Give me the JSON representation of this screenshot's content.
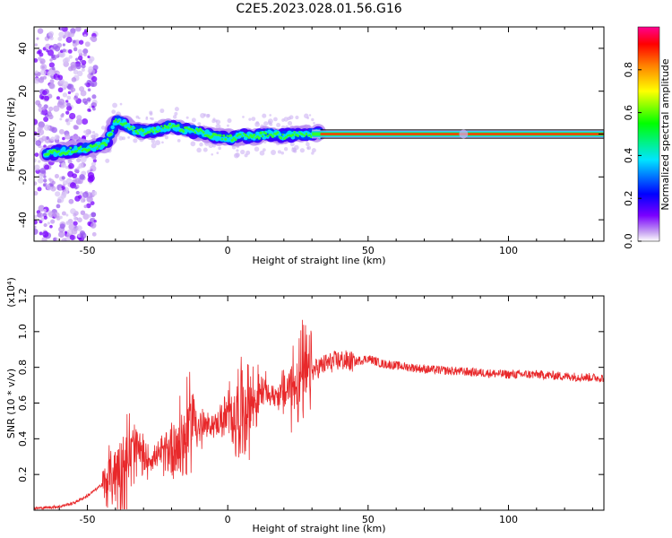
{
  "title": "C2E5.2023.028.01.56.G16",
  "colors": {
    "line": "#e8282a",
    "axis": "#000000"
  },
  "chart_data": [
    {
      "type": "heatmap",
      "xlabel": "Height of straight line (km)",
      "ylabel": "Frequency (Hz)",
      "xlim": [
        -69,
        134
      ],
      "ylim": [
        -50,
        50
      ],
      "x_ticks": [
        -50,
        0,
        50,
        100
      ],
      "y_ticks": [
        -40,
        -20,
        0,
        20,
        40
      ],
      "colorbar": {
        "label": "Normalized spectral amplitude",
        "range": [
          0,
          1
        ],
        "ticks": [
          "0.0",
          "0.2",
          "0.4",
          "0.6",
          "0.8"
        ],
        "colormap": "rainbow"
      },
      "ridge": {
        "x": [
          -64,
          -58,
          -52,
          -47,
          -43,
          -40,
          -37,
          -34,
          -30,
          -25,
          -20,
          -15,
          -10,
          -5,
          0,
          5,
          10,
          15,
          20,
          25,
          30,
          35,
          134
        ],
        "frequency": [
          -9,
          -8,
          -7,
          -6,
          -4,
          6,
          5,
          2,
          1,
          2,
          4,
          2,
          1,
          -1,
          -2,
          -1,
          -1,
          0,
          -1,
          0,
          0,
          0,
          0
        ]
      }
    },
    {
      "type": "line",
      "xlabel": "Height of straight line (km)",
      "ylabel": "SNR (10 * v/v)",
      "y_scale_label": "(x10⁴)",
      "xlim": [
        -69,
        134
      ],
      "ylim": [
        0,
        1.2
      ],
      "x_ticks": [
        -50,
        0,
        50,
        100
      ],
      "y_ticks": [
        "0.2",
        "0.4",
        "0.6",
        "0.8",
        "1.0",
        "1.2"
      ],
      "series": [
        {
          "x": [
            -69,
            -60,
            -55,
            -50,
            -45,
            -40,
            -35,
            -32,
            -30,
            -25,
            -20,
            -15,
            -12,
            -10,
            -5,
            0,
            5,
            10,
            13,
            15,
            20,
            25,
            30,
            35,
            40,
            45,
            50,
            55,
            60,
            70,
            80,
            90,
            100,
            110,
            120,
            134
          ],
          "values": [
            0.01,
            0.02,
            0.04,
            0.08,
            0.14,
            0.22,
            0.3,
            0.34,
            0.28,
            0.3,
            0.36,
            0.4,
            0.55,
            0.45,
            0.48,
            0.52,
            0.56,
            0.62,
            0.68,
            0.64,
            0.66,
            0.72,
            0.78,
            0.82,
            0.84,
            0.83,
            0.85,
            0.82,
            0.81,
            0.79,
            0.78,
            0.77,
            0.76,
            0.76,
            0.75,
            0.74
          ]
        }
      ]
    }
  ]
}
